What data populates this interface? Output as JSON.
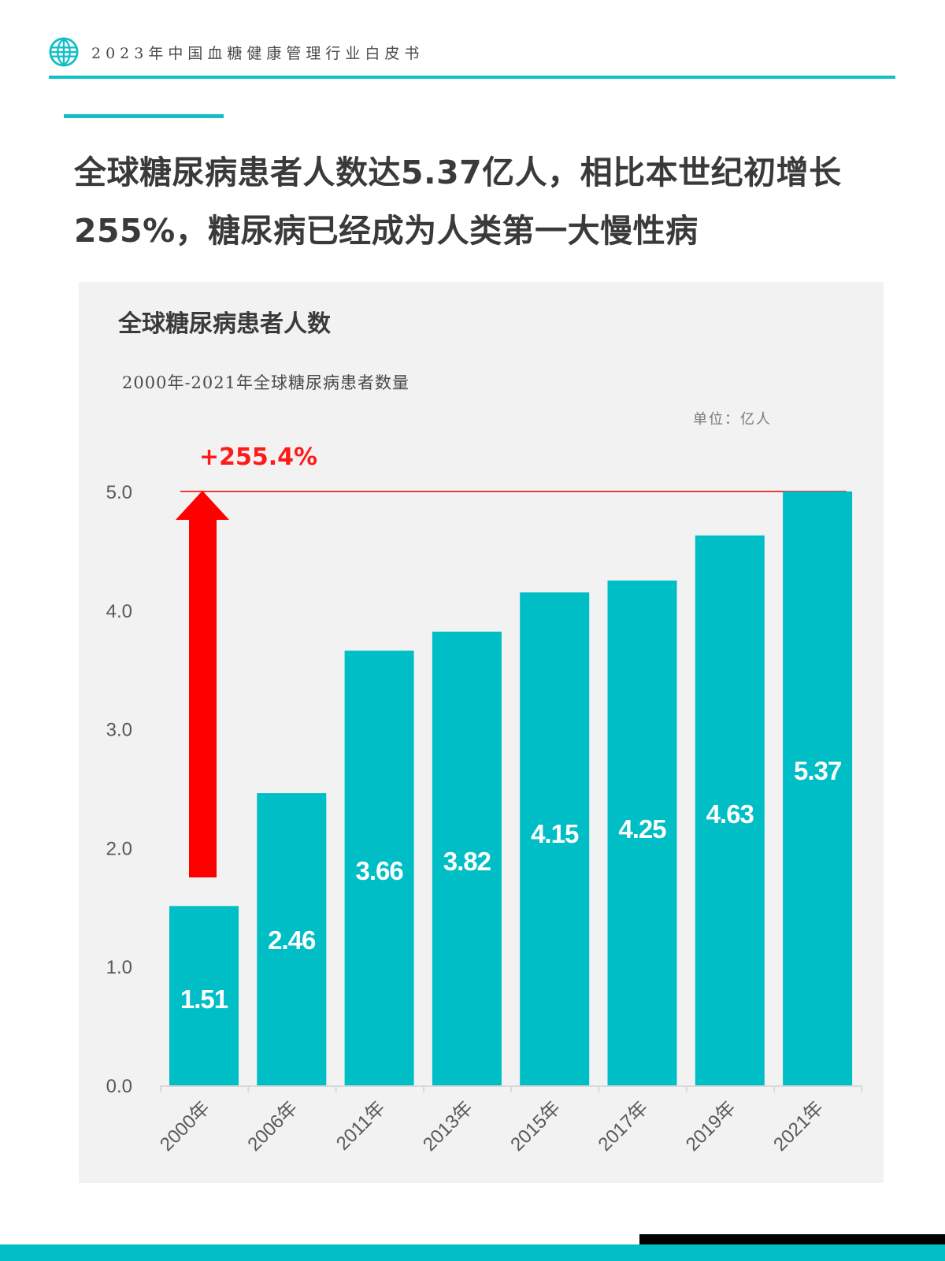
{
  "header": {
    "logo_icon": "globe-icon",
    "title": "2023年中国血糖健康管理行业白皮书"
  },
  "headline": {
    "line1": "全球糖尿病患者人数达5.37亿人，相比本世纪初增长",
    "line2": "255%，糖尿病已经成为人类第一大慢性病"
  },
  "colors": {
    "accent": "#13bfc6",
    "bar": "#00bec6",
    "highlight": "#ff0000",
    "panel_bg": "#f2f2f2"
  },
  "chart_data": {
    "type": "bar",
    "title": "全球糖尿病患者人数",
    "subtitle": "2000年-2021年全球糖尿病患者数量",
    "unit": "单位：亿人",
    "xlabel": "",
    "ylabel": "",
    "categories": [
      "2000年",
      "2006年",
      "2011年",
      "2013年",
      "2015年",
      "2017年",
      "2019年",
      "2021年"
    ],
    "values": [
      1.51,
      2.46,
      3.66,
      3.82,
      4.15,
      4.25,
      4.63,
      5.37
    ],
    "value_labels": [
      "1.51",
      "2.46",
      "3.66",
      "3.82",
      "4.15",
      "4.25",
      "4.63",
      "5.37"
    ],
    "ylim": [
      0,
      5.0
    ],
    "yticks": [
      "0.0",
      "1.0",
      "2.0",
      "3.0",
      "4.0",
      "5.0"
    ],
    "grid": false,
    "legend": null,
    "annotations": [
      {
        "text": "+255.4%",
        "type": "growth-arrow",
        "from": "2000年",
        "to": "2021年",
        "color": "#ff0000"
      }
    ]
  }
}
